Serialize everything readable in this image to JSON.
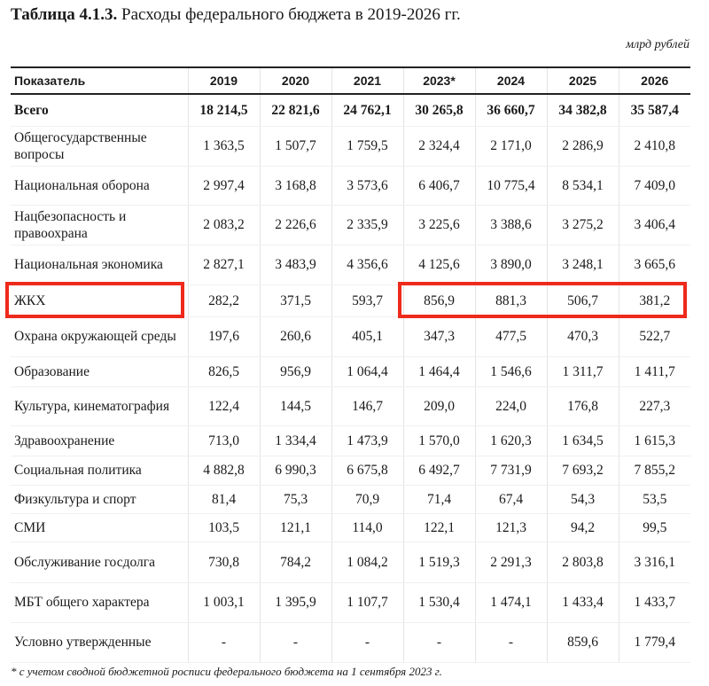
{
  "header": {
    "title_number": "Таблица 4.1.3.",
    "title": "Расходы федерального бюджета в 2019-2026 гг.",
    "unit": "млрд рублей"
  },
  "table": {
    "columns": [
      "Показатель",
      "2019",
      "2020",
      "2021",
      "2023*",
      "2024",
      "2025",
      "2026"
    ],
    "rows": [
      [
        "Всего",
        "18 214,5",
        "22 821,6",
        "24 762,1",
        "30 265,8",
        "36 660,7",
        "34 382,8",
        "35 587,4"
      ],
      [
        "Общегосударственные вопросы",
        "1 363,5",
        "1 507,7",
        "1 759,5",
        "2 324,4",
        "2 171,0",
        "2 286,9",
        "2 410,8"
      ],
      [
        "Национальная оборона",
        "2 997,4",
        "3 168,8",
        "3 573,6",
        "6 406,7",
        "10 775,4",
        "8 534,1",
        "7 409,0"
      ],
      [
        "Нацбезопасность и правоохрана",
        "2 083,2",
        "2 226,6",
        "2 335,9",
        "3 225,6",
        "3 388,6",
        "3 275,2",
        "3 406,4"
      ],
      [
        "Национальная экономика",
        "2 827,1",
        "3 483,9",
        "4 356,6",
        "4 125,6",
        "3 890,0",
        "3 248,1",
        "3 665,6"
      ],
      [
        "ЖКХ",
        "282,2",
        "371,5",
        "593,7",
        "856,9",
        "881,3",
        "506,7",
        "381,2"
      ],
      [
        "Охрана окружающей среды",
        "197,6",
        "260,6",
        "405,1",
        "347,3",
        "477,5",
        "470,3",
        "522,7"
      ],
      [
        "Образование",
        "826,5",
        "956,9",
        "1 064,4",
        "1 464,4",
        "1 546,6",
        "1 311,7",
        "1 411,7"
      ],
      [
        "Культура, кинематография",
        "122,4",
        "144,5",
        "146,7",
        "209,0",
        "224,0",
        "176,8",
        "227,3"
      ],
      [
        "Здравоохранение",
        "713,0",
        "1 334,4",
        "1 473,9",
        "1 570,0",
        "1 620,3",
        "1 634,5",
        "1 615,3"
      ],
      [
        "Социальная политика",
        "4 882,8",
        "6 990,3",
        "6 675,8",
        "6 492,7",
        "7 731,9",
        "7 693,2",
        "7 855,2"
      ],
      [
        "Физкультура и спорт",
        "81,4",
        "75,3",
        "70,9",
        "71,4",
        "67,4",
        "54,3",
        "53,5"
      ],
      [
        "СМИ",
        "103,5",
        "121,1",
        "114,0",
        "122,1",
        "121,3",
        "94,2",
        "99,5"
      ],
      [
        "Обслуживание госдолга",
        "730,8",
        "784,2",
        "1 084,2",
        "1 519,3",
        "2 291,3",
        "2 803,8",
        "3 316,1"
      ],
      [
        "МБТ общего характера",
        "1 003,1",
        "1 395,9",
        "1 107,7",
        "1 530,4",
        "1 474,1",
        "1 433,4",
        "1 433,7"
      ],
      [
        "Условно утвержденные",
        "-",
        "-",
        "-",
        "-",
        "-",
        "859,6",
        "1 779,4"
      ]
    ]
  },
  "footnote": "* с учетом сводной бюджетной росписи федерального бюджета на 1 сентября 2023 г."
}
